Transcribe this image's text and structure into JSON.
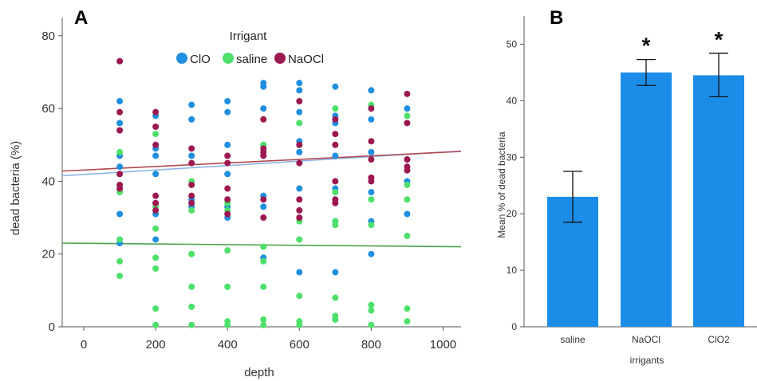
{
  "chart_data": [
    {
      "type": "scatter",
      "panel_label": "A",
      "xlabel": "depth",
      "ylabel": "dead bacteria (%)",
      "xlim": [
        -60,
        1050
      ],
      "ylim": [
        0,
        85
      ],
      "xticks": [
        0,
        200,
        400,
        600,
        800,
        1000
      ],
      "yticks": [
        0,
        20,
        40,
        60,
        80
      ],
      "grid": false,
      "legend": {
        "title": "Irrigant",
        "placement": "top-center"
      },
      "series": [
        {
          "name": "ClO",
          "color": "#1f8fe0",
          "points": [
            [
              100,
              62
            ],
            [
              100,
              56
            ],
            [
              100,
              47
            ],
            [
              100,
              44
            ],
            [
              100,
              31
            ],
            [
              100,
              23
            ],
            [
              200,
              58
            ],
            [
              200,
              49
            ],
            [
              200,
              47
            ],
            [
              200,
              42
            ],
            [
              200,
              34
            ],
            [
              200,
              31
            ],
            [
              200,
              24
            ],
            [
              300,
              61
            ],
            [
              300,
              57
            ],
            [
              300,
              47
            ],
            [
              300,
              35
            ],
            [
              300,
              33
            ],
            [
              400,
              62
            ],
            [
              400,
              59
            ],
            [
              400,
              50
            ],
            [
              400,
              42
            ],
            [
              400,
              33
            ],
            [
              400,
              30
            ],
            [
              500,
              67
            ],
            [
              500,
              66
            ],
            [
              500,
              60
            ],
            [
              500,
              50
            ],
            [
              500,
              36
            ],
            [
              500,
              33
            ],
            [
              500,
              19
            ],
            [
              600,
              67
            ],
            [
              600,
              65
            ],
            [
              600,
              59
            ],
            [
              600,
              51
            ],
            [
              600,
              48
            ],
            [
              600,
              38
            ],
            [
              600,
              15
            ],
            [
              700,
              66
            ],
            [
              700,
              58
            ],
            [
              700,
              56
            ],
            [
              700,
              47
            ],
            [
              700,
              38
            ],
            [
              700,
              29
            ],
            [
              700,
              15
            ],
            [
              800,
              65
            ],
            [
              800,
              57
            ],
            [
              800,
              48
            ],
            [
              800,
              37
            ],
            [
              800,
              29
            ],
            [
              800,
              20
            ],
            [
              900,
              60
            ],
            [
              900,
              46
            ],
            [
              900,
              40
            ],
            [
              900,
              31
            ]
          ]
        },
        {
          "name": "saline",
          "color": "#4ee06a",
          "points": [
            [
              100,
              48
            ],
            [
              100,
              37
            ],
            [
              100,
              24
            ],
            [
              100,
              18
            ],
            [
              100,
              14
            ],
            [
              200,
              53
            ],
            [
              200,
              33
            ],
            [
              200,
              27
            ],
            [
              200,
              19
            ],
            [
              200,
              16
            ],
            [
              200,
              5
            ],
            [
              200,
              0.5
            ],
            [
              300,
              40
            ],
            [
              300,
              32
            ],
            [
              300,
              20
            ],
            [
              300,
              11
            ],
            [
              300,
              5.5
            ],
            [
              300,
              0.5
            ],
            [
              400,
              34
            ],
            [
              400,
              32
            ],
            [
              400,
              21
            ],
            [
              400,
              11
            ],
            [
              400,
              1.5
            ],
            [
              400,
              0.5
            ],
            [
              500,
              50
            ],
            [
              500,
              22
            ],
            [
              500,
              18
            ],
            [
              500,
              11
            ],
            [
              500,
              2
            ],
            [
              500,
              0.5
            ],
            [
              600,
              56
            ],
            [
              600,
              29
            ],
            [
              600,
              24
            ],
            [
              600,
              8.5
            ],
            [
              600,
              1.5
            ],
            [
              600,
              0.5
            ],
            [
              700,
              60
            ],
            [
              700,
              37
            ],
            [
              700,
              29
            ],
            [
              700,
              28
            ],
            [
              700,
              8
            ],
            [
              700,
              3
            ],
            [
              700,
              2
            ],
            [
              800,
              61
            ],
            [
              800,
              35
            ],
            [
              800,
              28
            ],
            [
              800,
              6
            ],
            [
              800,
              4.5
            ],
            [
              800,
              0.5
            ],
            [
              900,
              58
            ],
            [
              900,
              39
            ],
            [
              900,
              35
            ],
            [
              900,
              25
            ],
            [
              900,
              5
            ],
            [
              900,
              1.5
            ]
          ]
        },
        {
          "name": "NaOCl",
          "color": "#9c1850",
          "points": [
            [
              100,
              73
            ],
            [
              100,
              59
            ],
            [
              100,
              54
            ],
            [
              100,
              42
            ],
            [
              100,
              39
            ],
            [
              100,
              38
            ],
            [
              200,
              59
            ],
            [
              200,
              55
            ],
            [
              200,
              50
            ],
            [
              200,
              36
            ],
            [
              200,
              34
            ],
            [
              200,
              32
            ],
            [
              300,
              49
            ],
            [
              300,
              45
            ],
            [
              300,
              39
            ],
            [
              300,
              36
            ],
            [
              300,
              34
            ],
            [
              400,
              47
            ],
            [
              400,
              45
            ],
            [
              400,
              38
            ],
            [
              400,
              35
            ],
            [
              400,
              31
            ],
            [
              500,
              57
            ],
            [
              500,
              49
            ],
            [
              500,
              48
            ],
            [
              500,
              47
            ],
            [
              500,
              35
            ],
            [
              500,
              30
            ],
            [
              600,
              62
            ],
            [
              600,
              50
            ],
            [
              600,
              45
            ],
            [
              600,
              35
            ],
            [
              600,
              32
            ],
            [
              600,
              30
            ],
            [
              700,
              57
            ],
            [
              700,
              53
            ],
            [
              700,
              50
            ],
            [
              700,
              40
            ],
            [
              700,
              35
            ],
            [
              700,
              34
            ],
            [
              800,
              60
            ],
            [
              800,
              51
            ],
            [
              800,
              46
            ],
            [
              800,
              41
            ],
            [
              800,
              40
            ],
            [
              900,
              64
            ],
            [
              900,
              56
            ],
            [
              900,
              46
            ],
            [
              900,
              44
            ],
            [
              900,
              43
            ]
          ]
        }
      ],
      "fit_lines": [
        {
          "series": "ClO",
          "color": "#8fb4e8",
          "x": [
            -60,
            1050
          ],
          "y": [
            41.5,
            48.3
          ]
        },
        {
          "series": "NaOCl",
          "color": "#b04a50",
          "x": [
            -60,
            1050
          ],
          "y": [
            42.8,
            48.2
          ]
        },
        {
          "series": "saline",
          "color": "#4aa34a",
          "x": [
            -60,
            1050
          ],
          "y": [
            23.0,
            22.0
          ]
        }
      ]
    },
    {
      "type": "bar",
      "panel_label": "B",
      "xlabel": "irrigants",
      "ylabel": "Mean % of dead bacteria",
      "ylim": [
        0,
        55
      ],
      "yticks": [
        0,
        10,
        20,
        30,
        40,
        50
      ],
      "grid": false,
      "categories": [
        "saline",
        "NaOCl",
        "ClO2"
      ],
      "values": [
        23,
        45,
        44.5
      ],
      "error_low": [
        18.5,
        42.7,
        40.7
      ],
      "error_high": [
        27.5,
        47.3,
        48.4
      ],
      "significance": [
        "",
        "*",
        "*"
      ],
      "bar_color": "#1b8de8"
    }
  ]
}
